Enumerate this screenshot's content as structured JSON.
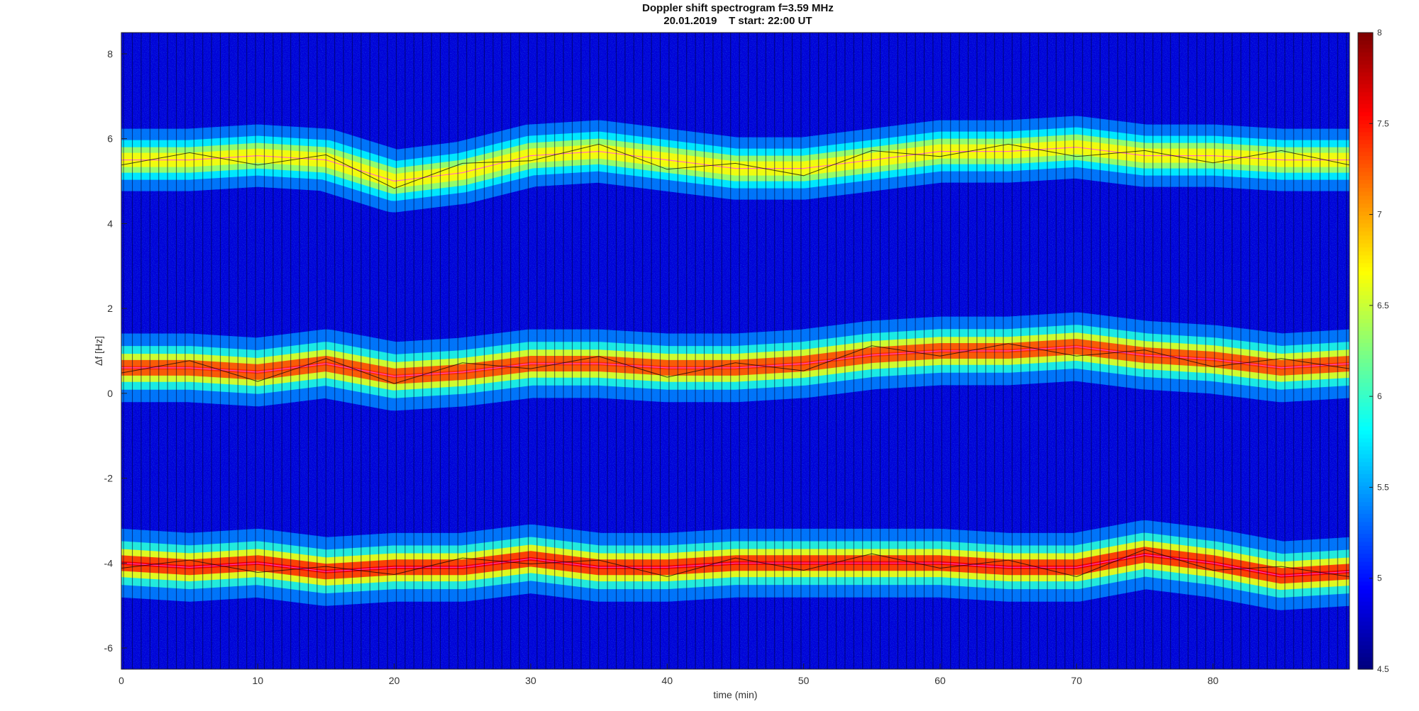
{
  "chart_data": {
    "type": "heatmap",
    "title": "Doppler shift spectrogram f=3.59 MHz",
    "subtitle": "20.01.2019    T start: 22:00 UT",
    "xlabel": "time (min)",
    "ylabel": "Δf [Hz]",
    "xlim": [
      0,
      90
    ],
    "ylim": [
      -6.5,
      8.5
    ],
    "x_ticks": [
      "0",
      "10",
      "20",
      "30",
      "40",
      "50",
      "60",
      "70",
      "80"
    ],
    "x_tick_values": [
      0,
      10,
      20,
      30,
      40,
      50,
      60,
      70,
      80
    ],
    "y_ticks": [
      "8",
      "6",
      "4",
      "2",
      "0",
      "-2",
      "-4",
      "-6"
    ],
    "y_tick_values": [
      8,
      6,
      4,
      2,
      0,
      -2,
      -4,
      -6
    ],
    "colorbar": {
      "colormap": "jet",
      "range": [
        4.5,
        8
      ],
      "ticks": [
        "8",
        "7.5",
        "7",
        "6.5",
        "6",
        "5.5",
        "5",
        "4.5"
      ],
      "tick_values": [
        8,
        7.5,
        7,
        6.5,
        6,
        5.5,
        5,
        4.5
      ]
    },
    "background_level": 4.8,
    "series": [
      {
        "x": [
          0,
          5,
          10,
          15,
          20,
          25,
          30,
          35,
          40,
          45,
          50,
          55,
          60,
          65,
          70,
          75,
          80,
          85,
          90
        ],
        "y": [
          5.5,
          5.5,
          5.6,
          5.5,
          5.0,
          5.2,
          5.6,
          5.7,
          5.5,
          5.3,
          5.3,
          5.5,
          5.7,
          5.7,
          5.8,
          5.6,
          5.6,
          5.5,
          5.5
        ],
        "peak_level": 6.7
      },
      {
        "x": [
          0,
          5,
          10,
          15,
          20,
          25,
          30,
          35,
          40,
          45,
          50,
          55,
          60,
          65,
          70,
          75,
          80,
          85,
          90
        ],
        "y": [
          0.6,
          0.6,
          0.5,
          0.7,
          0.4,
          0.5,
          0.7,
          0.7,
          0.6,
          0.6,
          0.7,
          0.9,
          1.0,
          1.0,
          1.1,
          0.9,
          0.8,
          0.6,
          0.7
        ],
        "peak_level": 7.4
      },
      {
        "x": [
          0,
          5,
          10,
          15,
          20,
          25,
          30,
          35,
          40,
          45,
          50,
          55,
          60,
          65,
          70,
          75,
          80,
          85,
          90
        ],
        "y": [
          -4.0,
          -4.1,
          -4.0,
          -4.2,
          -4.1,
          -4.1,
          -3.9,
          -4.1,
          -4.1,
          -4.0,
          -4.0,
          -4.0,
          -4.0,
          -4.1,
          -4.1,
          -3.8,
          -4.0,
          -4.3,
          -4.2
        ],
        "peak_level": 7.6
      }
    ]
  },
  "colors": {
    "axis": "#222222",
    "trace_pink": "#ff4df0",
    "trace_black": "#000000"
  }
}
